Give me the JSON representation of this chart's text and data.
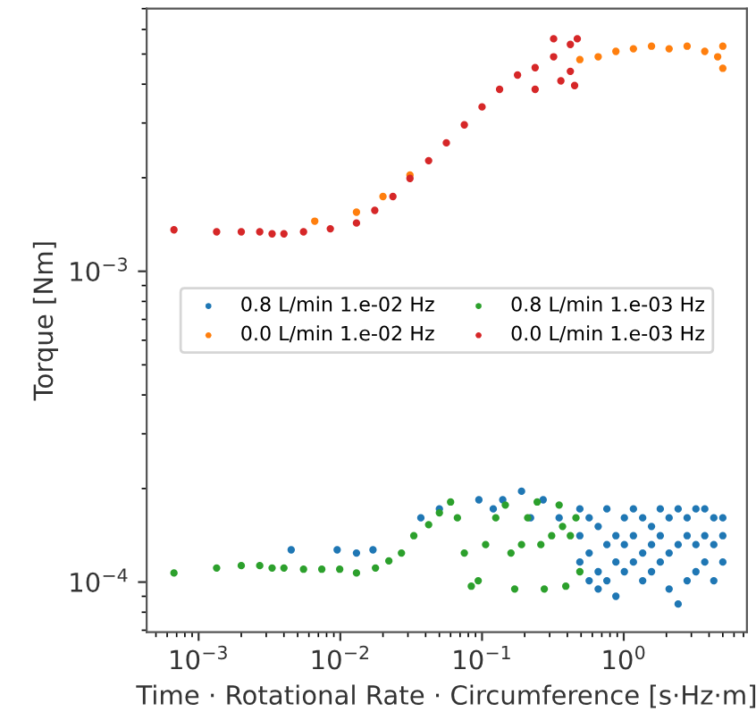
{
  "chart_data": {
    "type": "scatter",
    "xlabel": "Time · Rotational Rate · Circumference [s·Hz·m]",
    "ylabel": "Torque [Nm]",
    "log": "xy",
    "xlim": [
      0.00043,
      7.4
    ],
    "ylim": [
      6.9e-05,
      0.007
    ],
    "xticks": [
      {
        "value": 0.001,
        "label": "10$^{−3}$"
      },
      {
        "value": 0.01,
        "label": "10$^{−2}$"
      },
      {
        "value": 0.1,
        "label": "10$^{−1}$"
      },
      {
        "value": 1,
        "label": "10$^{0}$"
      }
    ],
    "yticks": [
      {
        "value": 0.0001,
        "label": "10$^{−4}$"
      },
      {
        "value": 0.001,
        "label": "10$^{−3}$"
      }
    ],
    "legend": "center",
    "grid": false,
    "marker": "circle",
    "series": [
      {
        "name": "0.8 L/min 1.e-02 Hz",
        "color": "#1f77b4",
        "x": [
          0.0045,
          0.0095,
          0.013,
          0.017,
          0.037,
          0.05,
          0.095,
          0.12,
          0.14,
          0.19,
          0.22,
          0.27,
          0.35,
          0.49,
          0.49,
          0.49,
          0.57,
          0.57,
          0.57,
          0.66,
          0.66,
          0.66,
          0.76,
          0.76,
          0.76,
          0.88,
          0.88,
          0.88,
          1.01,
          1.01,
          1.01,
          1.17,
          1.17,
          1.17,
          1.36,
          1.36,
          1.36,
          1.57,
          1.57,
          1.57,
          1.81,
          1.81,
          1.81,
          2.09,
          2.09,
          2.09,
          2.42,
          2.42,
          2.42,
          2.8,
          2.8,
          2.8,
          3.23,
          3.23,
          3.23,
          3.73,
          3.73,
          3.73,
          4.32,
          4.32,
          4.32,
          5.0,
          5.0,
          5.0
        ],
        "values": [
          0.000127,
          0.000127,
          0.000124,
          0.000127,
          0.000161,
          0.000172,
          0.000184,
          0.000172,
          0.000184,
          0.000196,
          0.000161,
          0.000184,
          0.000161,
          0.000172,
          0.000141,
          0.000116,
          0.000161,
          0.000124,
          0.000101,
          0.000151,
          0.000108,
          9.5e-05,
          0.000172,
          0.000132,
          0.000101,
          0.000141,
          0.000116,
          9e-05,
          0.000161,
          0.000132,
          0.000108,
          0.000172,
          0.000141,
          0.000116,
          0.000161,
          0.000124,
          0.000101,
          0.000151,
          0.000132,
          0.000108,
          0.000172,
          0.000141,
          0.000116,
          0.000161,
          0.000124,
          9.5e-05,
          0.000172,
          0.000132,
          8.5e-05,
          0.000161,
          0.000141,
          0.000101,
          0.000172,
          0.000132,
          0.000108,
          0.000172,
          0.000141,
          0.000116,
          0.000161,
          0.000132,
          0.000101,
          0.000161,
          0.000141,
          0.000116
        ]
      },
      {
        "name": "0.0 L/min 1.e-02 Hz",
        "color": "#ff7f0e",
        "x": [
          0.0066,
          0.013,
          0.02,
          0.031,
          0.49,
          0.66,
          0.88,
          1.17,
          1.57,
          2.09,
          2.8,
          3.73,
          4.6,
          5.0,
          5.0
        ],
        "values": [
          0.00145,
          0.00155,
          0.00174,
          0.00204,
          0.0048,
          0.0049,
          0.0051,
          0.0052,
          0.0053,
          0.0052,
          0.0053,
          0.0051,
          0.0049,
          0.0053,
          0.0045
        ]
      },
      {
        "name": "0.8 L/min 1.e-03 Hz",
        "color": "#2ca02c",
        "x": [
          0.00067,
          0.00134,
          0.002,
          0.0027,
          0.0033,
          0.004,
          0.0055,
          0.0074,
          0.0099,
          0.013,
          0.0177,
          0.022,
          0.027,
          0.033,
          0.042,
          0.05,
          0.06,
          0.067,
          0.075,
          0.084,
          0.094,
          0.106,
          0.125,
          0.146,
          0.16,
          0.17,
          0.19,
          0.21,
          0.245,
          0.26,
          0.275,
          0.31,
          0.35,
          0.37,
          0.39,
          0.42,
          0.46,
          0.49
        ],
        "values": [
          0.000107,
          0.000111,
          0.000113,
          0.000113,
          0.000111,
          0.000111,
          0.00011,
          0.00011,
          0.00011,
          0.000107,
          0.000111,
          0.000117,
          0.000124,
          0.000141,
          0.000153,
          0.000167,
          0.000181,
          0.000161,
          0.000124,
          9.7e-05,
          0.000101,
          0.000132,
          0.000161,
          0.000177,
          0.000124,
          9.5e-05,
          0.000132,
          0.000161,
          0.000181,
          0.000132,
          9.5e-05,
          0.000141,
          0.000177,
          0.000151,
          9.7e-05,
          0.000141,
          0.000161,
          0.000108
        ]
      },
      {
        "name": "0.0 L/min 1.e-03 Hz",
        "color": "#d62728",
        "x": [
          0.00067,
          0.00134,
          0.002,
          0.0027,
          0.0033,
          0.004,
          0.0055,
          0.0085,
          0.013,
          0.0175,
          0.0235,
          0.031,
          0.042,
          0.056,
          0.075,
          0.1,
          0.133,
          0.178,
          0.237,
          0.237,
          0.32,
          0.32,
          0.36,
          0.42,
          0.42,
          0.45,
          0.47
        ],
        "values": [
          0.00136,
          0.00134,
          0.00134,
          0.00134,
          0.00132,
          0.00132,
          0.00134,
          0.00137,
          0.00143,
          0.00157,
          0.00174,
          0.00199,
          0.00227,
          0.00259,
          0.00296,
          0.00338,
          0.00385,
          0.00428,
          0.00452,
          0.00385,
          0.0049,
          0.0056,
          0.0041,
          0.00537,
          0.0044,
          0.00396,
          0.0056
        ]
      }
    ]
  }
}
